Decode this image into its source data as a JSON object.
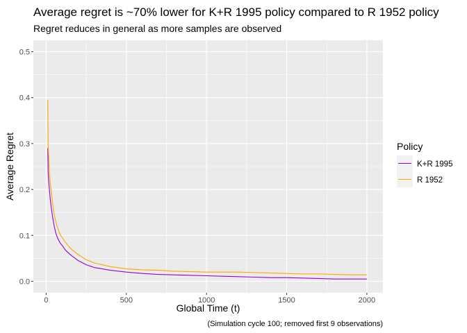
{
  "chart_data": {
    "type": "line",
    "title": "Average regret is ~70% lower for K+R 1995 policy compared to R 1952 policy",
    "subtitle": "Regret reduces in general as more samples are observed",
    "xlabel": "Global Time (t)",
    "ylabel": "Average Regret",
    "caption": "(Simulation cycle 100; removed first 9 observations)",
    "xlim": [
      -80,
      2100
    ],
    "ylim": [
      -0.025,
      0.525
    ],
    "x_ticks": [
      0,
      500,
      1000,
      1500,
      2000
    ],
    "x_tick_labels": [
      "0",
      "500",
      "1000",
      "1500",
      "2000"
    ],
    "y_ticks": [
      0.0,
      0.1,
      0.2,
      0.3,
      0.4,
      0.5
    ],
    "y_tick_labels": [
      "0.0",
      "0.1",
      "0.2",
      "0.3",
      "0.4",
      "0.5"
    ],
    "grid": true,
    "panel_background": "#ebebeb",
    "legend": {
      "title": "Policy",
      "position": "right"
    },
    "series": [
      {
        "name": "K+R 1995",
        "color": "#9400d3",
        "points": [
          [
            10,
            0.29
          ],
          [
            12,
            0.24
          ],
          [
            15,
            0.22
          ],
          [
            20,
            0.2
          ],
          [
            25,
            0.18
          ],
          [
            30,
            0.165
          ],
          [
            40,
            0.14
          ],
          [
            50,
            0.12
          ],
          [
            60,
            0.105
          ],
          [
            70,
            0.095
          ],
          [
            80,
            0.088
          ],
          [
            90,
            0.082
          ],
          [
            100,
            0.078
          ],
          [
            120,
            0.068
          ],
          [
            150,
            0.058
          ],
          [
            200,
            0.045
          ],
          [
            250,
            0.036
          ],
          [
            300,
            0.03
          ],
          [
            400,
            0.024
          ],
          [
            500,
            0.02
          ],
          [
            600,
            0.017
          ],
          [
            700,
            0.015
          ],
          [
            800,
            0.014
          ],
          [
            900,
            0.013
          ],
          [
            1000,
            0.012
          ],
          [
            1100,
            0.011
          ],
          [
            1200,
            0.01
          ],
          [
            1300,
            0.009
          ],
          [
            1400,
            0.008
          ],
          [
            1500,
            0.008
          ],
          [
            1600,
            0.007
          ],
          [
            1700,
            0.006
          ],
          [
            1800,
            0.005
          ],
          [
            1900,
            0.005
          ],
          [
            2000,
            0.005
          ]
        ]
      },
      {
        "name": "R 1952",
        "color": "#ffa500",
        "points": [
          [
            10,
            0.395
          ],
          [
            12,
            0.3
          ],
          [
            15,
            0.275
          ],
          [
            20,
            0.24
          ],
          [
            25,
            0.215
          ],
          [
            30,
            0.2
          ],
          [
            40,
            0.17
          ],
          [
            50,
            0.145
          ],
          [
            60,
            0.13
          ],
          [
            70,
            0.118
          ],
          [
            80,
            0.108
          ],
          [
            90,
            0.1
          ],
          [
            100,
            0.095
          ],
          [
            120,
            0.085
          ],
          [
            150,
            0.072
          ],
          [
            200,
            0.058
          ],
          [
            250,
            0.047
          ],
          [
            300,
            0.04
          ],
          [
            400,
            0.032
          ],
          [
            500,
            0.027
          ],
          [
            600,
            0.025
          ],
          [
            700,
            0.024
          ],
          [
            800,
            0.022
          ],
          [
            900,
            0.021
          ],
          [
            1000,
            0.02
          ],
          [
            1100,
            0.02
          ],
          [
            1200,
            0.02
          ],
          [
            1300,
            0.019
          ],
          [
            1400,
            0.018
          ],
          [
            1500,
            0.017
          ],
          [
            1600,
            0.016
          ],
          [
            1700,
            0.016
          ],
          [
            1800,
            0.015
          ],
          [
            1900,
            0.014
          ],
          [
            2000,
            0.014
          ]
        ]
      }
    ]
  }
}
